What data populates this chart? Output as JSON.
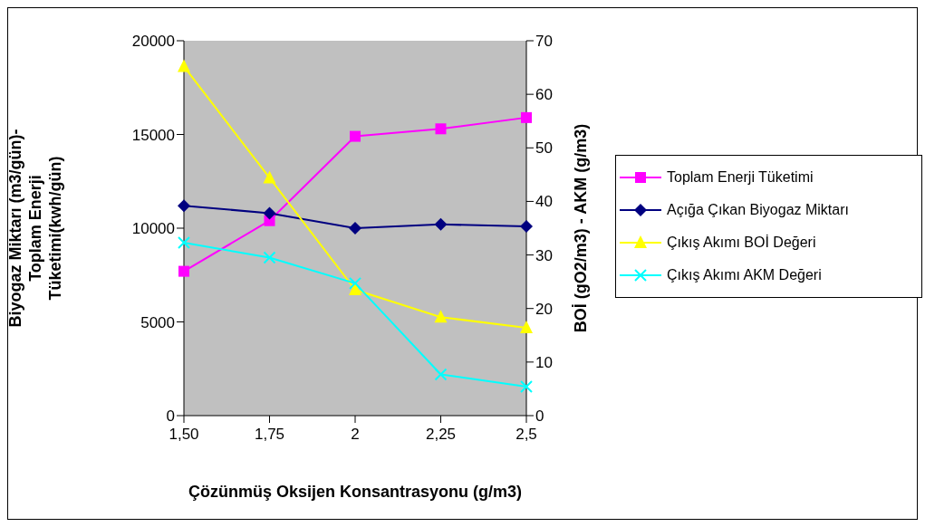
{
  "chart_data": {
    "type": "line",
    "xlabel": "Çözünmüş Oksijen Konsantrasyonu (g/m3)",
    "ylabel": "Biyogaz Miktarı (m3/gün)-\nToplam Enerji\nTüketimi(kwh/gün)",
    "y2label": "BOİ (gO2/m3)  -  AKM (g/m3)",
    "categories": [
      "1,50",
      "1,75",
      "2",
      "2,25",
      "2,5"
    ],
    "ylim": [
      0,
      20000
    ],
    "yticks": [
      0,
      5000,
      10000,
      15000,
      20000
    ],
    "y2lim": [
      0,
      70
    ],
    "y2ticks": [
      0,
      10,
      20,
      30,
      40,
      50,
      60,
      70
    ],
    "grid": false,
    "legend": "right",
    "series": [
      {
        "name": "Toplam Enerji Tüketimi",
        "color": "#ff00ff",
        "marker": "square",
        "values": [
          7700,
          10400,
          14900,
          15300,
          15900
        ]
      },
      {
        "name": "Açığa Çıkan Biyogaz Miktarı",
        "color": "#000080",
        "marker": "diamond",
        "values": [
          11200,
          10800,
          10000,
          10200,
          10100
        ]
      },
      {
        "name": "Çıkış Akımı BOİ Değeri",
        "color": "#ffff00",
        "marker": "triangle",
        "axis": "y2",
        "values": [
          65.2,
          44.4,
          23.5,
          18.4,
          16.4
        ]
      },
      {
        "name": "Çıkış Akımı AKM Değeri",
        "color": "#00ffff",
        "marker": "cross",
        "axis": "y2",
        "values": [
          32.3,
          29.5,
          24.7,
          7.7,
          5.4
        ]
      }
    ]
  }
}
